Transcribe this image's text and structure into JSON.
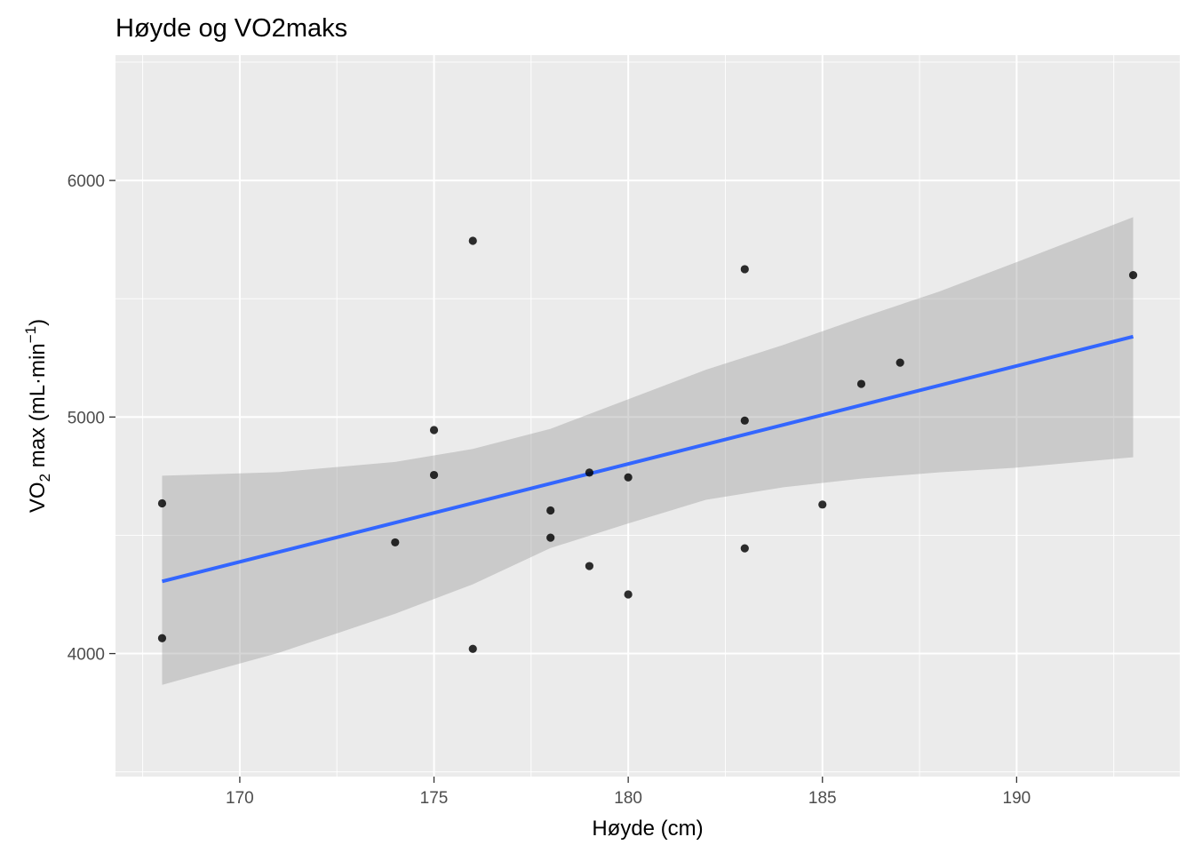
{
  "chart_data": {
    "type": "scatter",
    "title": "Høyde og VO2maks",
    "xlabel": "Høyde (cm)",
    "ylabel": {
      "prefix": "VO",
      "sub": "2",
      "middle": " max (mL·min",
      "sup": "−1",
      "suffix": ")"
    },
    "xlim": [
      166.8,
      194.2
    ],
    "ylim": [
      3480,
      6530
    ],
    "x_ticks": [
      170,
      175,
      180,
      185,
      190
    ],
    "x_tick_labels": [
      "170",
      "175",
      "180",
      "185",
      "190"
    ],
    "y_ticks": [
      4000,
      5000,
      6000
    ],
    "y_tick_labels": [
      "4000",
      "5000",
      "6000"
    ],
    "grid": true,
    "points": [
      {
        "x": 168,
        "y": 4635
      },
      {
        "x": 168,
        "y": 4065
      },
      {
        "x": 174,
        "y": 4470
      },
      {
        "x": 175,
        "y": 4945
      },
      {
        "x": 175,
        "y": 4755
      },
      {
        "x": 176,
        "y": 5745
      },
      {
        "x": 176,
        "y": 4020
      },
      {
        "x": 178,
        "y": 4605
      },
      {
        "x": 178,
        "y": 4490
      },
      {
        "x": 179,
        "y": 4765
      },
      {
        "x": 179,
        "y": 4370
      },
      {
        "x": 180,
        "y": 4745
      },
      {
        "x": 180,
        "y": 4250
      },
      {
        "x": 183,
        "y": 5625
      },
      {
        "x": 183,
        "y": 4985
      },
      {
        "x": 183,
        "y": 4445
      },
      {
        "x": 185,
        "y": 4630
      },
      {
        "x": 186,
        "y": 5140
      },
      {
        "x": 187,
        "y": 5230
      },
      {
        "x": 193,
        "y": 5600
      }
    ],
    "trend_line": {
      "x": [
        168,
        193
      ],
      "y": [
        4305,
        5340
      ],
      "color": "#3366ff"
    },
    "confidence_band": {
      "x": [
        168,
        171,
        174,
        176,
        178,
        180,
        182,
        184,
        186,
        188,
        190,
        193
      ],
      "upper": [
        4752,
        4767,
        4810,
        4865,
        4950,
        5075,
        5200,
        5305,
        5420,
        5530,
        5655,
        5845
      ],
      "lower": [
        3868,
        4003,
        4168,
        4293,
        4446,
        4550,
        4650,
        4703,
        4740,
        4766,
        4786,
        4830
      ],
      "color": "#999999"
    },
    "colors": {
      "panel": "#ebebeb",
      "grid": "#ffffff",
      "points": "#000000"
    }
  }
}
